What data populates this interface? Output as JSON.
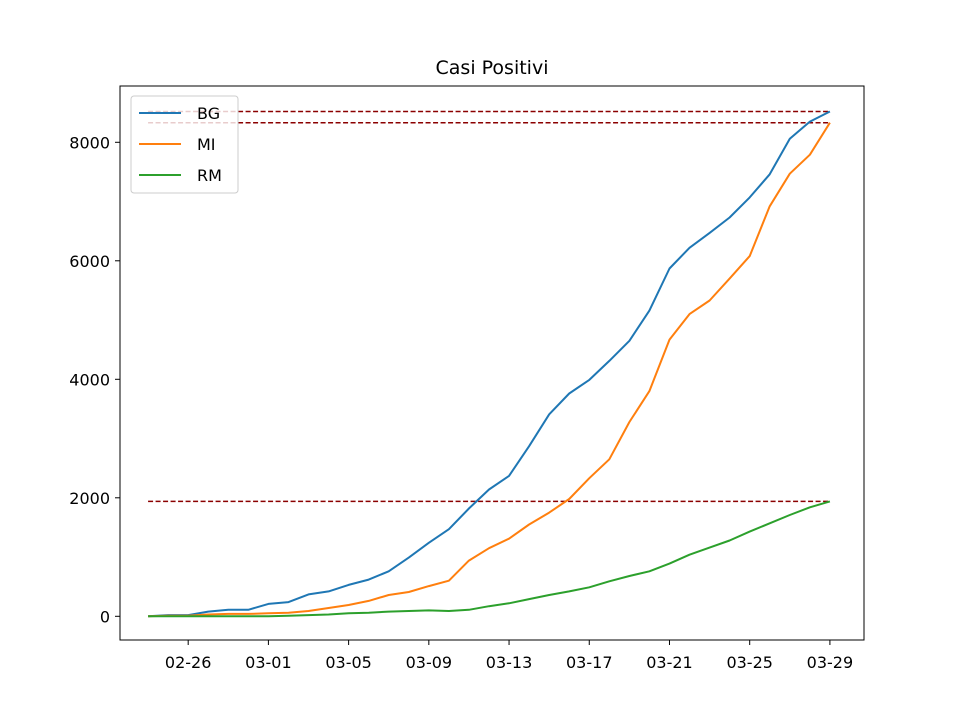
{
  "chart_data": {
    "type": "line",
    "title": "Casi Positivi",
    "xlabel": "",
    "ylabel": "",
    "x_start": "02-24",
    "x": [
      "02-24",
      "02-25",
      "02-26",
      "02-27",
      "02-28",
      "02-29",
      "03-01",
      "03-02",
      "03-03",
      "03-04",
      "03-05",
      "03-06",
      "03-07",
      "03-08",
      "03-09",
      "03-10",
      "03-11",
      "03-12",
      "03-13",
      "03-14",
      "03-15",
      "03-16",
      "03-17",
      "03-18",
      "03-19",
      "03-20",
      "03-21",
      "03-22",
      "03-23",
      "03-24",
      "03-25",
      "03-26",
      "03-27",
      "03-28",
      "03-29"
    ],
    "xticks": [
      "02-26",
      "03-01",
      "03-05",
      "03-09",
      "03-13",
      "03-17",
      "03-21",
      "03-25",
      "03-29"
    ],
    "yticks": [
      0,
      2000,
      4000,
      6000,
      8000
    ],
    "ylim": [
      -400,
      8950
    ],
    "xlim": [
      "02-22.6",
      "03-30.7"
    ],
    "grid": false,
    "legend_position": "top-left",
    "series": [
      {
        "name": "BG",
        "color": "#1f77b4",
        "values": [
          0,
          20,
          20,
          80,
          110,
          110,
          210,
          240,
          370,
          420,
          530,
          620,
          760,
          990,
          1240,
          1470,
          1820,
          2140,
          2370,
          2870,
          3410,
          3760,
          3990,
          4310,
          4650,
          5160,
          5870,
          6220,
          6470,
          6730,
          7070,
          7460,
          8060,
          8350,
          8520
        ]
      },
      {
        "name": "MI",
        "color": "#ff7f0e",
        "values": [
          0,
          10,
          10,
          30,
          40,
          40,
          50,
          60,
          90,
          140,
          190,
          260,
          360,
          410,
          510,
          600,
          940,
          1150,
          1310,
          1550,
          1750,
          1980,
          2330,
          2650,
          3280,
          3800,
          4670,
          5100,
          5330,
          5700,
          6080,
          6920,
          7470,
          7790,
          8330
        ]
      },
      {
        "name": "RM",
        "color": "#2ca02c",
        "values": [
          0,
          0,
          0,
          0,
          0,
          0,
          0,
          10,
          20,
          30,
          50,
          60,
          80,
          90,
          100,
          90,
          110,
          170,
          220,
          290,
          360,
          420,
          490,
          590,
          680,
          760,
          890,
          1040,
          1160,
          1280,
          1430,
          1570,
          1710,
          1840,
          1940
        ]
      }
    ],
    "reference_lines": [
      {
        "y": 8520,
        "x_from": "02-24",
        "x_to": "03-29",
        "color": "#8b0000",
        "style": "dashed"
      },
      {
        "y": 8330,
        "x_from": "02-24",
        "x_to": "03-29",
        "color": "#8b0000",
        "style": "dashed"
      },
      {
        "y": 1940,
        "x_from": "02-24",
        "x_to": "03-29",
        "color": "#8b0000",
        "style": "dashed"
      }
    ]
  }
}
